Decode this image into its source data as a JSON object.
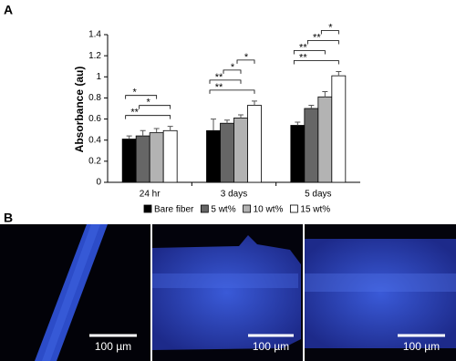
{
  "panel_labels": [
    "A",
    "B"
  ],
  "chart_data": {
    "type": "bar",
    "y_label": "Absorbance (au)",
    "categories": [
      "24 hr",
      "3 days",
      "5 days"
    ],
    "series": [
      {
        "name": "Bare fiber",
        "color": "#000000",
        "values": [
          0.41,
          0.49,
          0.54
        ],
        "errors": [
          0.03,
          0.11,
          0.03
        ]
      },
      {
        "name": "5 wt%",
        "color": "#666666",
        "values": [
          0.44,
          0.56,
          0.7
        ],
        "errors": [
          0.05,
          0.03,
          0.03
        ]
      },
      {
        "name": "10 wt%",
        "color": "#b3b3b3",
        "values": [
          0.47,
          0.61,
          0.81
        ],
        "errors": [
          0.04,
          0.03,
          0.05
        ]
      },
      {
        "name": "15 wt%",
        "color": "#ffffff",
        "values": [
          0.49,
          0.73,
          1.01
        ],
        "errors": [
          0.04,
          0.04,
          0.04
        ]
      }
    ],
    "ylim": [
      0,
      1.4
    ],
    "yticks": [
      0,
      0.2,
      0.4,
      0.6,
      0.8,
      1,
      1.2,
      1.4
    ],
    "significance": [
      {
        "label": "**",
        "category": 0,
        "series": [
          0,
          3
        ]
      },
      {
        "label": "*",
        "category": 0,
        "series": [
          1,
          3
        ]
      },
      {
        "label": "*",
        "category": 0,
        "series": [
          0,
          2
        ]
      },
      {
        "label": "**",
        "category": 1,
        "series": [
          0,
          3
        ]
      },
      {
        "label": "**",
        "category": 1,
        "series": [
          0,
          2
        ]
      },
      {
        "label": "*",
        "category": 1,
        "series": [
          1,
          2
        ]
      },
      {
        "label": "*",
        "category": 1,
        "series": [
          2,
          3
        ]
      },
      {
        "label": "**",
        "category": 2,
        "series": [
          0,
          3
        ]
      },
      {
        "label": "**",
        "category": 2,
        "series": [
          0,
          2
        ]
      },
      {
        "label": "**",
        "category": 2,
        "series": [
          1,
          3
        ]
      },
      {
        "label": "*",
        "category": 2,
        "series": [
          2,
          3
        ]
      }
    ]
  },
  "images": [
    {
      "scale_bar": "100 µm"
    },
    {
      "scale_bar": "100 µm"
    },
    {
      "scale_bar": "100 µm"
    }
  ]
}
